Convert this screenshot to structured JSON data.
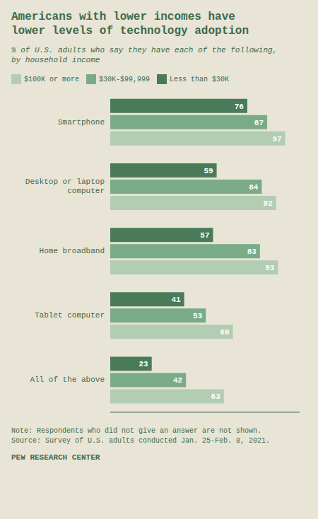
{
  "chart_data": {
    "type": "bar",
    "orientation": "horizontal",
    "title": "Americans with lower incomes have\nlower levels of technology adoption",
    "subtitle": "% of U.S. adults who say they have each of the following,\nby household income",
    "categories": [
      "Smartphone",
      "Desktop or laptop\ncomputer",
      "Home broadband",
      "Tablet computer",
      "All of the above"
    ],
    "series": [
      {
        "name": "Less than $30K",
        "color": "#4a7b58",
        "values": [
          76,
          59,
          57,
          41,
          23
        ]
      },
      {
        "name": "$30K-$99,999",
        "color": "#7aab87",
        "values": [
          87,
          84,
          83,
          53,
          42
        ]
      },
      {
        "name": "$100K or more",
        "color": "#b2cdb2",
        "values": [
          97,
          92,
          93,
          68,
          63
        ]
      }
    ],
    "xlim": [
      0,
      105
    ],
    "data_labels": true,
    "tick_labels": "y",
    "grid": false,
    "legend": "top",
    "annotations": [
      "Note: Respondents who did not give an answer are not shown.\nSource: Survey of U.S. adults conducted Jan. 25-Feb. 8, 2021.",
      "PEW RESEARCH CENTER"
    ]
  }
}
